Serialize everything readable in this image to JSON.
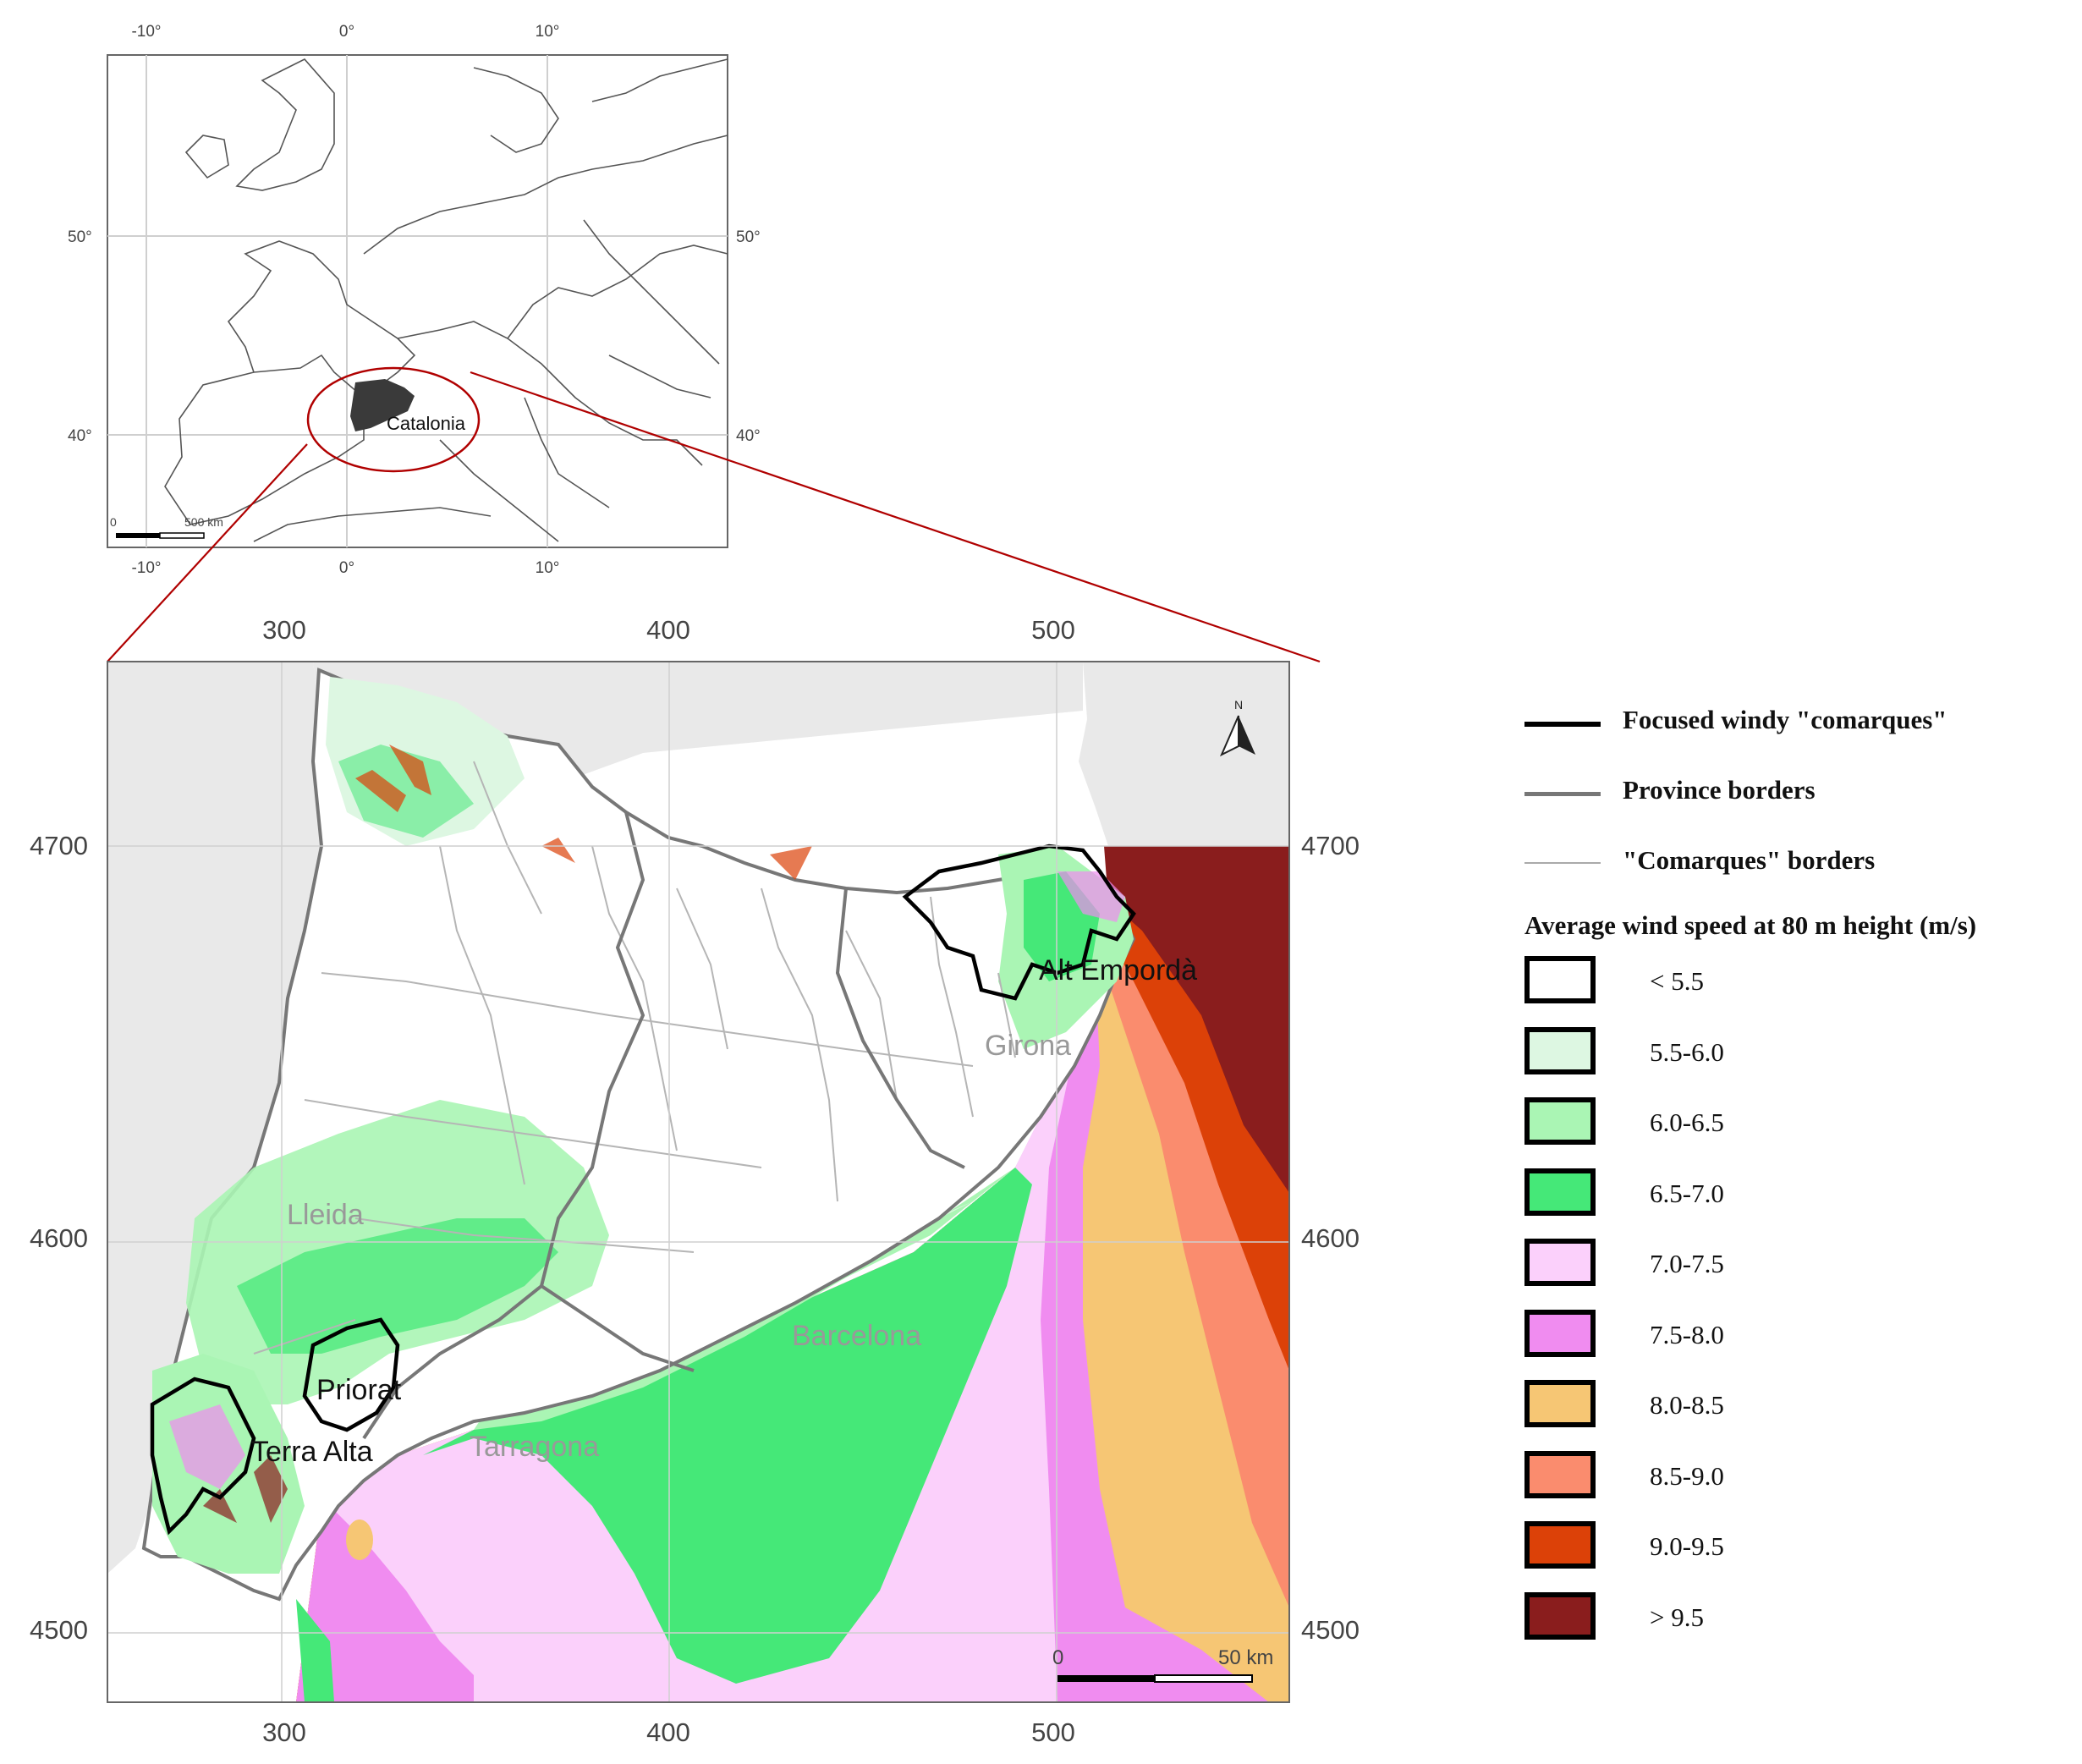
{
  "inset_map": {
    "top_ticks": [
      "-10°",
      "0°",
      "10°"
    ],
    "bottom_ticks": [
      "-10°",
      "0°",
      "10°"
    ],
    "left_ticks": [
      "50°",
      "40°"
    ],
    "right_ticks": [
      "50°",
      "40°"
    ],
    "highlight_label": "Catalonia",
    "scalebar": {
      "start": "0",
      "end": "500 km"
    }
  },
  "main_map": {
    "top_ticks": [
      "300",
      "400",
      "500"
    ],
    "bottom_ticks": [
      "300",
      "400",
      "500"
    ],
    "left_ticks": [
      "4700",
      "4600",
      "4500"
    ],
    "right_ticks": [
      "4700",
      "4600",
      "4500"
    ],
    "north_label": "N",
    "scalebar": {
      "start": "0",
      "end": "50 km"
    },
    "provinces": [
      "Lleida",
      "Girona",
      "Barcelona",
      "Tarragona"
    ],
    "comarques": [
      "Alt Empordà",
      "Priorat",
      "Terra Alta"
    ]
  },
  "legend": {
    "lines": [
      {
        "label": "Focused windy \"comarques\"",
        "color": "#000000"
      },
      {
        "label": "Province borders",
        "color": "#777777"
      },
      {
        "label": "\"Comarques\" borders",
        "color": "#aaaaaa"
      }
    ],
    "title": "Average wind speed at 80 m height (m/s)",
    "classes": [
      {
        "label": "< 5.5",
        "color": "#ffffff"
      },
      {
        "label": "5.5-6.0",
        "color": "#ddf7e2"
      },
      {
        "label": "6.0-6.5",
        "color": "#aaf5b4"
      },
      {
        "label": "6.5-7.0",
        "color": "#45e878"
      },
      {
        "label": "7.0-7.5",
        "color": "#fbd0fb"
      },
      {
        "label": "7.5-8.0",
        "color": "#f08cf0"
      },
      {
        "label": "8.0-8.5",
        "color": "#f6c674"
      },
      {
        "label": "8.5-9.0",
        "color": "#fa8c6e"
      },
      {
        "label": "9.0-9.5",
        "color": "#dc4108"
      },
      {
        "label": "> 9.5",
        "color": "#8a1d1d"
      }
    ]
  }
}
